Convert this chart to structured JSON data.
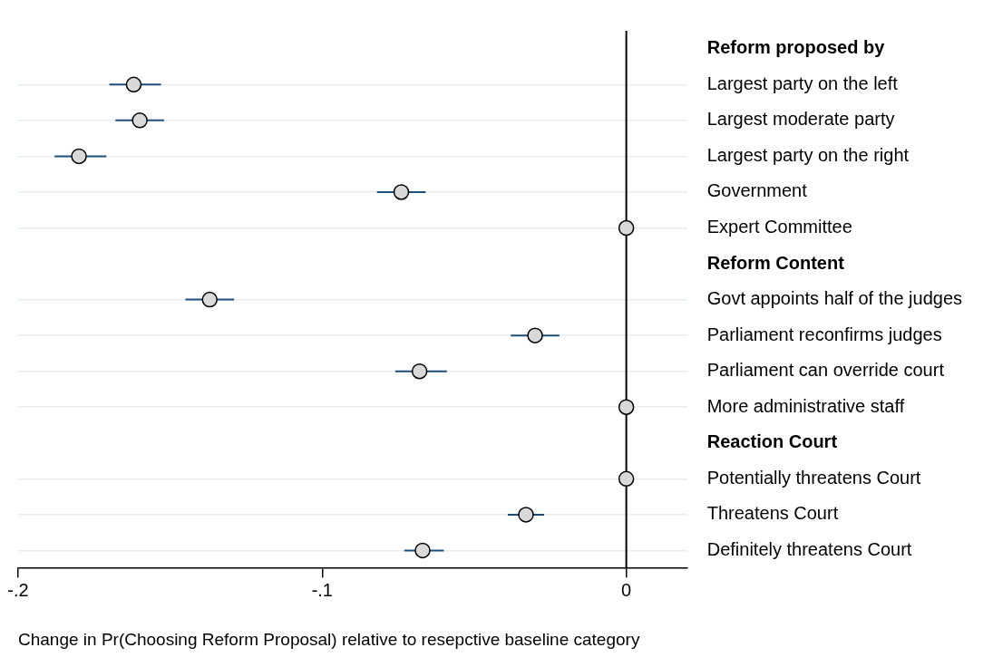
{
  "chart_data": {
    "type": "scatter",
    "orientation": "horizontal",
    "xlabel": "Change in Pr(Choosing Reform Proposal) relative to resepctive baseline category",
    "categories": [
      "Reform proposed by",
      "Largest party on the left",
      "Largest moderate party",
      "Largest party on the right",
      "Government",
      "Expert Committee",
      "Reform Content",
      "Govt appoints half of the judges",
      "Parliament reconfirms judges",
      "Parliament can override court",
      "More administrative staff",
      "Reaction Court",
      "Potentially threatens Court",
      "Threatens Court",
      "Definitely threatens Court"
    ],
    "series": [
      {
        "color": "#d9d9d9",
        "values": [
          null,
          -0.162,
          -0.16,
          -0.18,
          -0.074,
          0,
          null,
          -0.137,
          -0.03,
          -0.068,
          0,
          null,
          0,
          -0.033,
          -0.067
        ],
        "errors": [
          null,
          [
            -0.17,
            -0.153
          ],
          [
            -0.168,
            -0.152
          ],
          [
            -0.188,
            -0.171
          ],
          [
            -0.082,
            -0.066
          ],
          null,
          null,
          [
            -0.145,
            -0.129
          ],
          [
            -0.038,
            -0.022
          ],
          [
            -0.076,
            -0.059
          ],
          null,
          null,
          null,
          [
            -0.039,
            -0.027
          ],
          [
            -0.073,
            -0.06
          ]
        ]
      }
    ],
    "xlim": [
      -0.2,
      0.02
    ],
    "xticks": [
      {
        "value": -0.2,
        "label": "-.2"
      },
      {
        "value": -0.1,
        "label": "-.1"
      },
      0
    ],
    "ref_lines": [
      {
        "axis": "x",
        "value": 0,
        "color": "#000000"
      }
    ],
    "grid": "y",
    "marker": "circle",
    "legend": false
  }
}
